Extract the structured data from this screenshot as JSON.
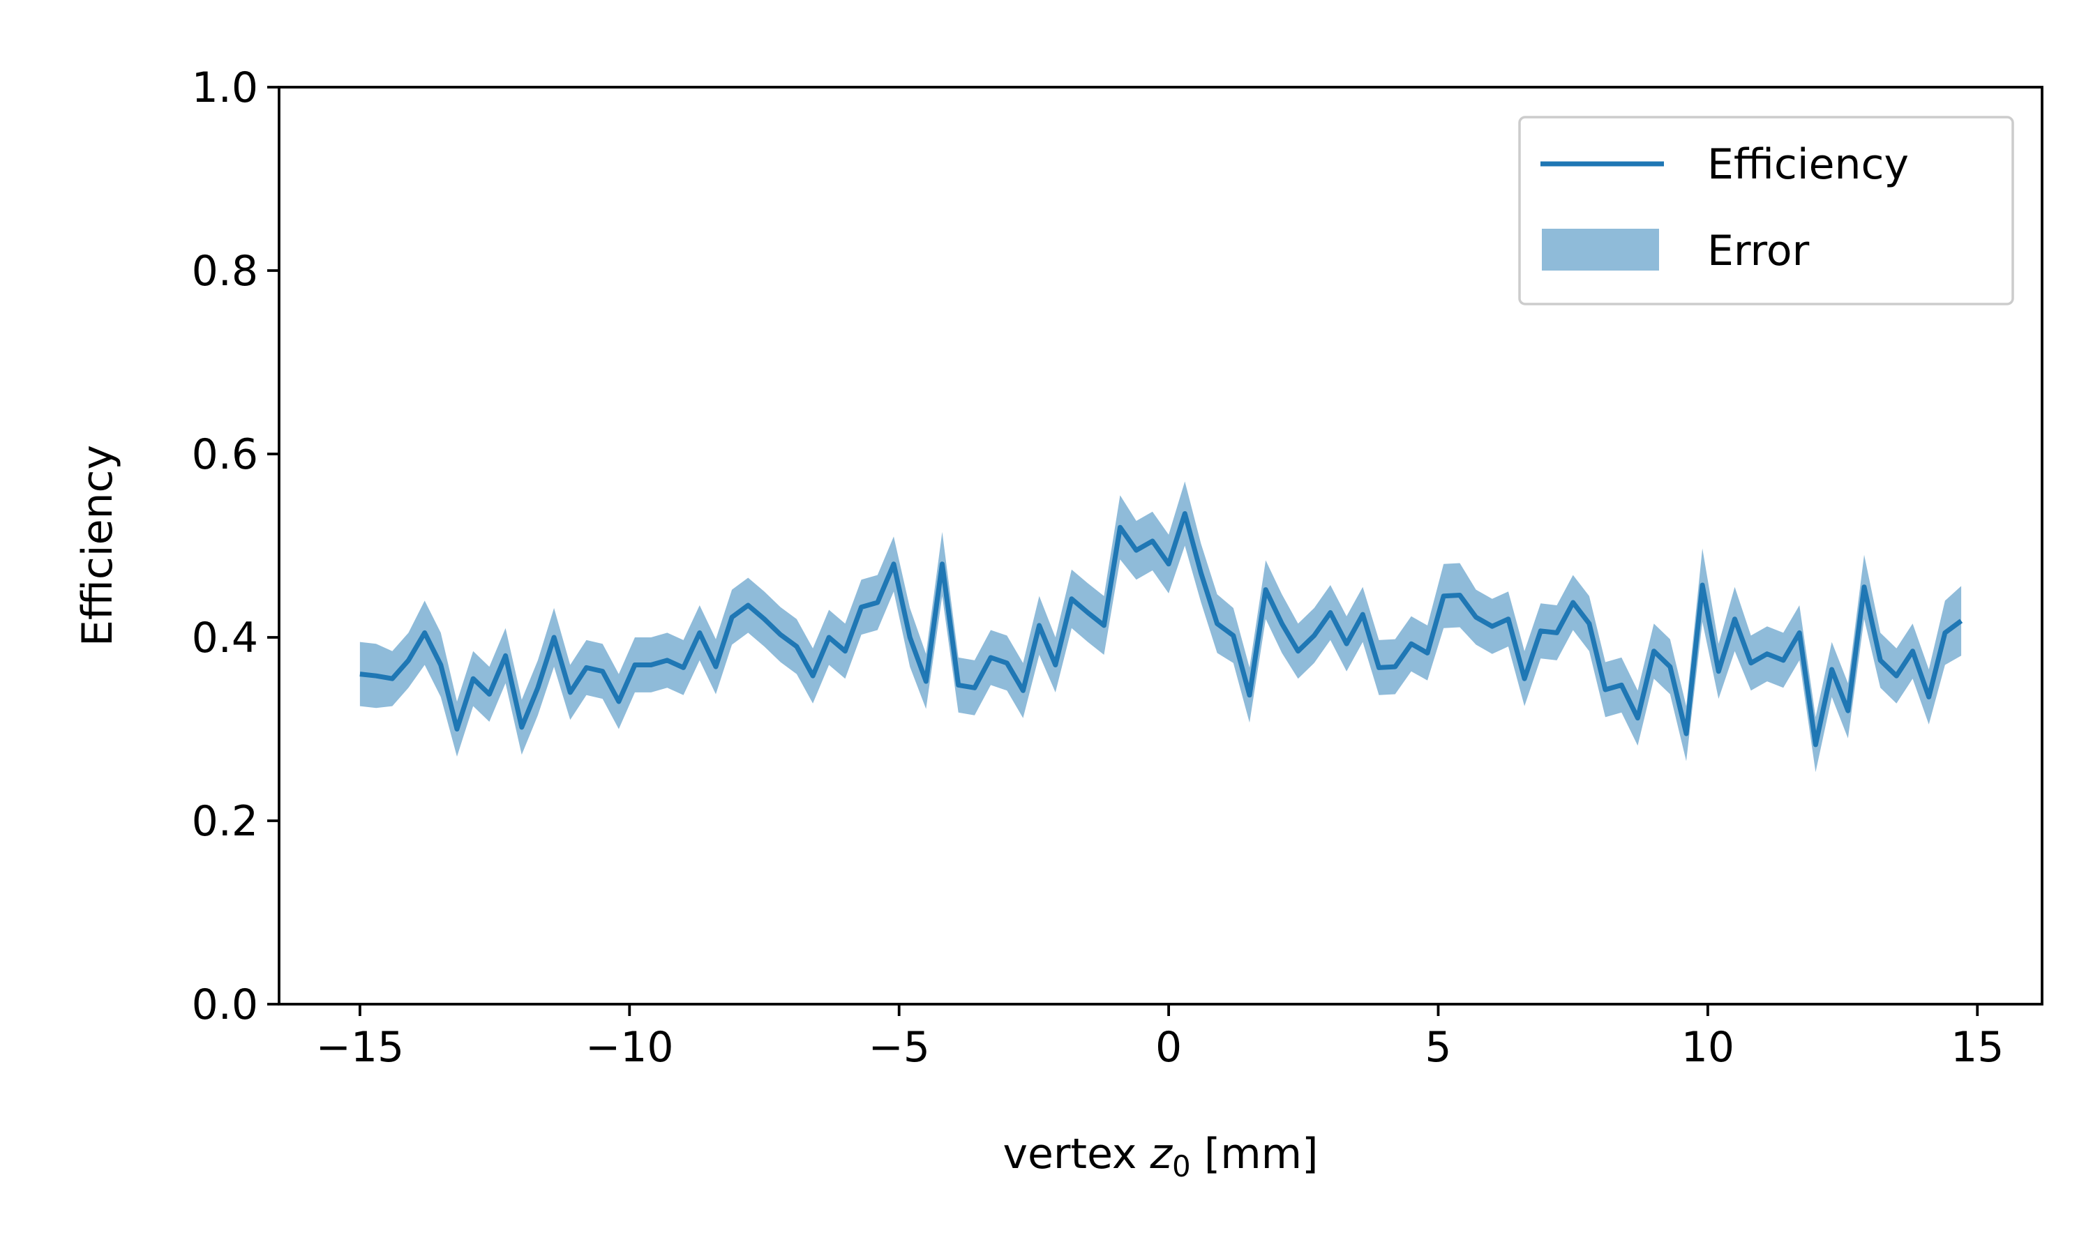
{
  "chart_data": {
    "type": "line",
    "xlabel_prefix": "vertex ",
    "xlabel_var": "z",
    "xlabel_sub": "0",
    "xlabel_suffix": " [mm]",
    "ylabel": "Efficiency",
    "xlim": [
      -16.5,
      16.2
    ],
    "ylim": [
      0.0,
      1.0
    ],
    "xticks": [
      -15,
      -10,
      -5,
      0,
      5,
      10,
      15
    ],
    "xtick_labels": [
      "−15",
      "−10",
      "−5",
      "0",
      "5",
      "10",
      "15"
    ],
    "yticks": [
      0.0,
      0.2,
      0.4,
      0.6,
      0.8,
      1.0
    ],
    "ytick_labels": [
      "0.0",
      "0.2",
      "0.4",
      "0.6",
      "0.8",
      "1.0"
    ],
    "grid": false,
    "legend_position": "upper-right",
    "colors": {
      "line": "#1f77b4",
      "band": "#1f77b4",
      "band_opacity": 0.5
    },
    "series": [
      {
        "name": "Efficiency",
        "kind": "line",
        "x": [
          -15.0,
          -14.7,
          -14.4,
          -14.1,
          -13.8,
          -13.5,
          -13.2,
          -12.9,
          -12.6,
          -12.3,
          -12.0,
          -11.7,
          -11.4,
          -11.1,
          -10.8,
          -10.5,
          -10.2,
          -9.9,
          -9.6,
          -9.3,
          -9.0,
          -8.7,
          -8.4,
          -8.1,
          -7.8,
          -7.5,
          -7.2,
          -6.9,
          -6.6,
          -6.3,
          -6.0,
          -5.7,
          -5.4,
          -5.1,
          -4.8,
          -4.5,
          -4.2,
          -3.9,
          -3.6,
          -3.3,
          -3.0,
          -2.7,
          -2.4,
          -2.1,
          -1.8,
          -1.5,
          -1.2,
          -0.9,
          -0.6,
          -0.3,
          0.0,
          0.3,
          0.6,
          0.9,
          1.2,
          1.5,
          1.8,
          2.1,
          2.4,
          2.7,
          3.0,
          3.3,
          3.6,
          3.9,
          4.2,
          4.5,
          4.8,
          5.1,
          5.4,
          5.7,
          6.0,
          6.3,
          6.6,
          6.9,
          7.2,
          7.5,
          7.8,
          8.1,
          8.4,
          8.7,
          9.0,
          9.3,
          9.6,
          9.9,
          10.2,
          10.5,
          10.8,
          11.1,
          11.4,
          11.7,
          12.0,
          12.3,
          12.6,
          12.9,
          13.2,
          13.5,
          13.8,
          14.1,
          14.4,
          14.7
        ],
        "y": [
          0.36,
          0.358,
          0.355,
          0.375,
          0.405,
          0.37,
          0.3,
          0.355,
          0.338,
          0.38,
          0.302,
          0.345,
          0.4,
          0.34,
          0.367,
          0.363,
          0.33,
          0.37,
          0.37,
          0.375,
          0.367,
          0.405,
          0.368,
          0.422,
          0.435,
          0.42,
          0.403,
          0.39,
          0.358,
          0.4,
          0.385,
          0.433,
          0.438,
          0.48,
          0.4,
          0.352,
          0.48,
          0.348,
          0.345,
          0.378,
          0.372,
          0.342,
          0.413,
          0.37,
          0.442,
          0.427,
          0.413,
          0.52,
          0.495,
          0.505,
          0.48,
          0.535,
          0.47,
          0.415,
          0.402,
          0.337,
          0.452,
          0.415,
          0.385,
          0.402,
          0.427,
          0.393,
          0.425,
          0.367,
          0.368,
          0.393,
          0.383,
          0.445,
          0.446,
          0.422,
          0.412,
          0.42,
          0.355,
          0.407,
          0.405,
          0.438,
          0.415,
          0.343,
          0.348,
          0.312,
          0.385,
          0.368,
          0.295,
          0.457,
          0.363,
          0.42,
          0.372,
          0.382,
          0.375,
          0.405,
          0.283,
          0.365,
          0.32,
          0.455,
          0.375,
          0.358,
          0.385,
          0.335,
          0.405,
          0.418
        ]
      },
      {
        "name": "Error",
        "kind": "band",
        "half_width": [
          0.035,
          0.035,
          0.03,
          0.03,
          0.035,
          0.035,
          0.03,
          0.03,
          0.03,
          0.03,
          0.03,
          0.03,
          0.032,
          0.03,
          0.03,
          0.03,
          0.03,
          0.03,
          0.03,
          0.03,
          0.03,
          0.03,
          0.03,
          0.03,
          0.03,
          0.03,
          0.03,
          0.03,
          0.03,
          0.03,
          0.03,
          0.03,
          0.03,
          0.03,
          0.032,
          0.03,
          0.035,
          0.03,
          0.03,
          0.03,
          0.03,
          0.03,
          0.032,
          0.03,
          0.032,
          0.032,
          0.032,
          0.035,
          0.032,
          0.032,
          0.032,
          0.035,
          0.032,
          0.032,
          0.03,
          0.03,
          0.032,
          0.032,
          0.03,
          0.03,
          0.03,
          0.03,
          0.03,
          0.03,
          0.03,
          0.03,
          0.03,
          0.035,
          0.035,
          0.03,
          0.03,
          0.03,
          0.03,
          0.03,
          0.03,
          0.03,
          0.03,
          0.03,
          0.03,
          0.03,
          0.03,
          0.03,
          0.03,
          0.04,
          0.03,
          0.035,
          0.03,
          0.03,
          0.03,
          0.03,
          0.03,
          0.03,
          0.03,
          0.035,
          0.03,
          0.03,
          0.03,
          0.03,
          0.035,
          0.038
        ]
      }
    ],
    "legend": [
      "Efficiency",
      "Error"
    ]
  }
}
